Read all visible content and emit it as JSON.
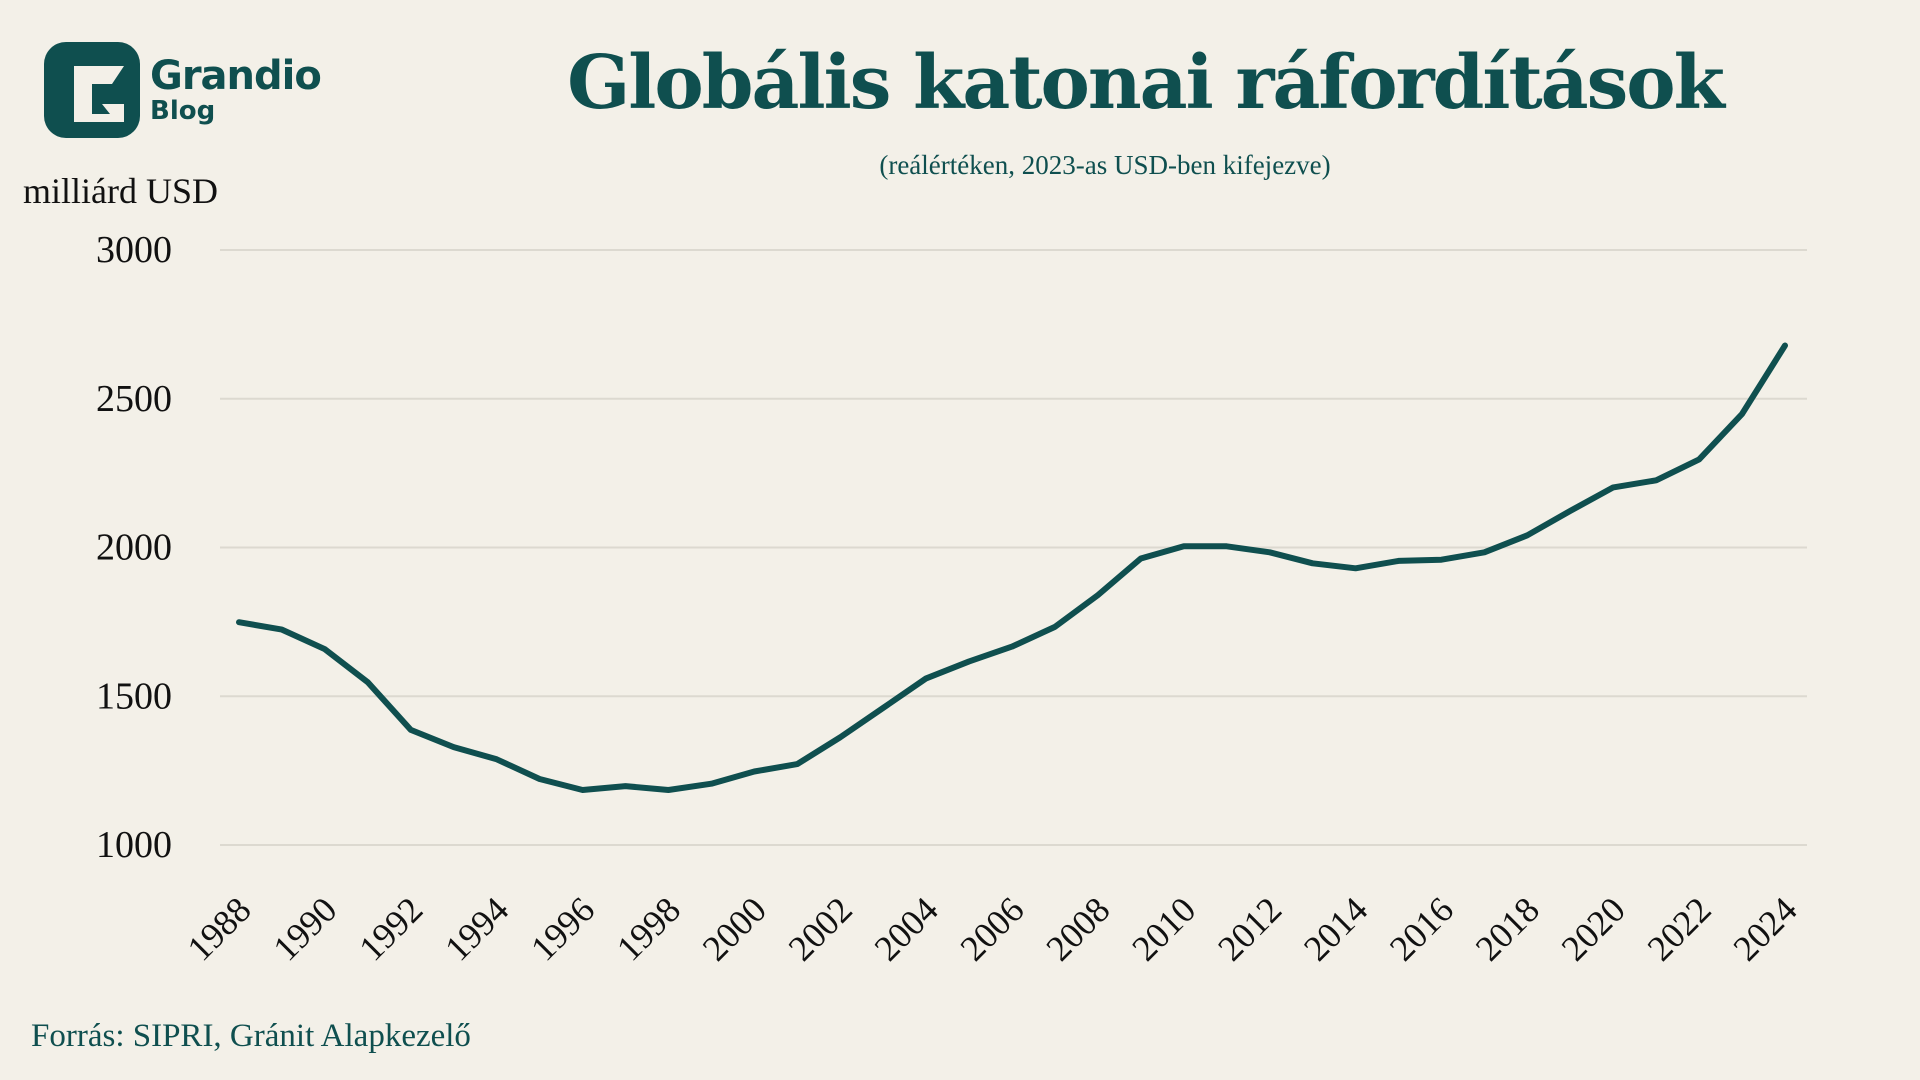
{
  "brand": {
    "name": "Grandio",
    "sub": "Blog"
  },
  "colors": {
    "accent": "#0f4f4f",
    "background": "#f3f0e8",
    "grid": "#dcd9d0"
  },
  "chart_data": {
    "type": "line",
    "title": "Globális katonai ráfordítások",
    "subtitle": "(reálértéken, 2023-as USD-ben kifejezve)",
    "ylabel": "milliárd USD",
    "xlabel": "",
    "source": "Forrás: SIPRI, Gránit Alapkezelő",
    "ylim": [
      1000,
      3000
    ],
    "yticks": [
      1000,
      1500,
      2000,
      2500,
      3000
    ],
    "xticks": [
      1988,
      1990,
      1992,
      1994,
      1996,
      1998,
      2000,
      2002,
      2004,
      2006,
      2008,
      2010,
      2012,
      2014,
      2016,
      2018,
      2020,
      2022,
      2024
    ],
    "grid": true,
    "x": [
      1988,
      1989,
      1990,
      1991,
      1992,
      1993,
      1994,
      1995,
      1996,
      1997,
      1998,
      1999,
      2000,
      2001,
      2002,
      2003,
      2004,
      2005,
      2006,
      2007,
      2008,
      2009,
      2010,
      2011,
      2012,
      2013,
      2014,
      2015,
      2016,
      2017,
      2018,
      2019,
      2020,
      2021,
      2022,
      2023,
      2024
    ],
    "series": [
      {
        "name": "Globális katonai ráfordítások",
        "values": [
          1749,
          1724,
          1658,
          1547,
          1387,
          1329,
          1288,
          1222,
          1185,
          1198,
          1185,
          1206,
          1247,
          1272,
          1362,
          1461,
          1560,
          1617,
          1667,
          1733,
          1840,
          1963,
          2004,
          2004,
          1984,
          1947,
          1930,
          1955,
          1959,
          1984,
          2041,
          2123,
          2202,
          2226,
          2296,
          2449,
          2679
        ]
      }
    ]
  }
}
